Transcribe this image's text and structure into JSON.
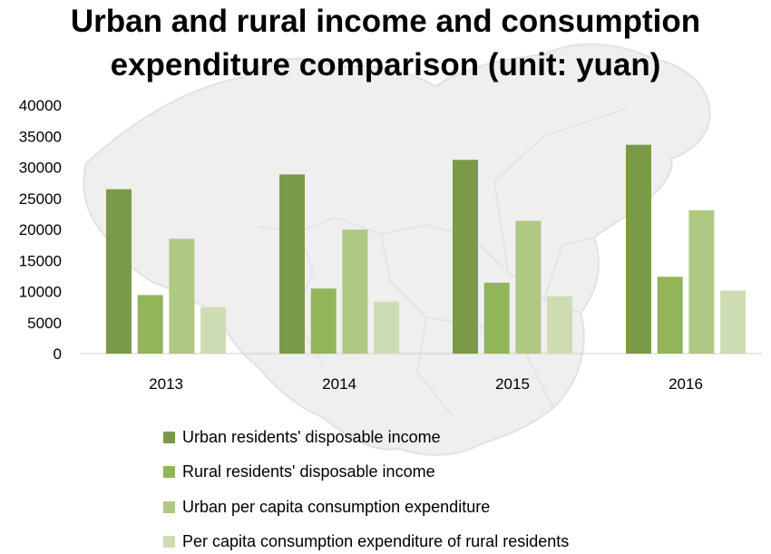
{
  "chart_data": {
    "type": "bar",
    "title_lines": [
      "Urban and rural income and consumption",
      "expenditure comparison (unit: yuan)"
    ],
    "categories": [
      "2013",
      "2014",
      "2015",
      "2016"
    ],
    "series": [
      {
        "name": "Urban residents' disposable income",
        "color": "#7a9a47",
        "values": [
          26467,
          28844,
          31195,
          33616
        ]
      },
      {
        "name": "Rural residents' disposable income",
        "color": "#93b55a",
        "values": [
          9430,
          10489,
          11422,
          12363
        ]
      },
      {
        "name": "Urban per capita consumption expenditure",
        "color": "#afc883",
        "values": [
          18488,
          19968,
          21392,
          23079
        ]
      },
      {
        "name": "Per capita consumption expenditure of rural residents",
        "color": "#cedcb4",
        "values": [
          7485,
          8383,
          9223,
          10130
        ]
      }
    ],
    "ylim": [
      0,
      40000
    ],
    "yticks": [
      "0",
      "5000",
      "10000",
      "15000",
      "20000",
      "25000",
      "30000",
      "35000",
      "40000"
    ],
    "xlabel": "",
    "ylabel": "",
    "grid": false,
    "legend_position": "bottom"
  }
}
